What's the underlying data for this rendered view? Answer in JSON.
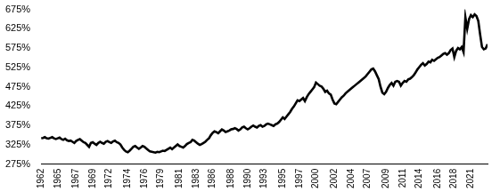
{
  "chart_data": {
    "type": "line",
    "color": "#000000",
    "grid": false,
    "categories": [
      "1962",
      null,
      null,
      null,
      null,
      null,
      null,
      null,
      null,
      "1965",
      null,
      null,
      null,
      null,
      null,
      null,
      null,
      null,
      null,
      "1967",
      null,
      null,
      null,
      null,
      null,
      null,
      null,
      null,
      "1969",
      null,
      null,
      null,
      null,
      null,
      null,
      null,
      null,
      "1972",
      null,
      null,
      null,
      null,
      null,
      null,
      null,
      null,
      null,
      "1974",
      null,
      null,
      null,
      null,
      null,
      null,
      null,
      null,
      "1976",
      null,
      null,
      null,
      null,
      null,
      null,
      null,
      null,
      "1979",
      null,
      null,
      null,
      null,
      null,
      null,
      null,
      null,
      null,
      "1981",
      null,
      null,
      null,
      null,
      null,
      null,
      null,
      null,
      "1983",
      null,
      null,
      null,
      null,
      null,
      null,
      null,
      null,
      "1986",
      null,
      null,
      null,
      null,
      null,
      null,
      null,
      null,
      null,
      "1988",
      null,
      null,
      null,
      null,
      null,
      null,
      null,
      null,
      "1990",
      null,
      null,
      null,
      null,
      null,
      null,
      null,
      null,
      "1993",
      null,
      null,
      null,
      null,
      null,
      null,
      null,
      null,
      null,
      "1995",
      null,
      null,
      null,
      null,
      null,
      null,
      null,
      null,
      "1997",
      null,
      null,
      null,
      null,
      null,
      null,
      null,
      null,
      "2000",
      null,
      null,
      null,
      null,
      null,
      null,
      null,
      null,
      null,
      "2002",
      null,
      null,
      null,
      null,
      null,
      null,
      null,
      null,
      "2004",
      null,
      null,
      null,
      null,
      null,
      null,
      null,
      null,
      "2007",
      null,
      null,
      null,
      null,
      null,
      null,
      null,
      null,
      null,
      "2009",
      null,
      null,
      null,
      null,
      null,
      null,
      null,
      null,
      "2011",
      null,
      null,
      null,
      null,
      null,
      null,
      null,
      null,
      "2014",
      null,
      null,
      null,
      null,
      null,
      null,
      null,
      null,
      null,
      "2016",
      null,
      null,
      null,
      null,
      null,
      null,
      null,
      null,
      "2018",
      null,
      null,
      null,
      null,
      null,
      null,
      null,
      null,
      "2021",
      null,
      null,
      null,
      null,
      null,
      null,
      null,
      null,
      null
    ],
    "values": [
      342,
      343,
      345,
      342,
      341,
      343,
      345,
      342,
      340,
      342,
      344,
      340,
      338,
      341,
      337,
      335,
      336,
      333,
      330,
      335,
      338,
      340,
      336,
      332,
      330,
      325,
      320,
      330,
      332,
      328,
      325,
      330,
      333,
      330,
      328,
      333,
      335,
      332,
      330,
      334,
      336,
      332,
      330,
      326,
      318,
      312,
      308,
      306,
      310,
      315,
      320,
      322,
      318,
      315,
      318,
      322,
      320,
      316,
      312,
      308,
      307,
      306,
      305,
      307,
      306,
      308,
      310,
      309,
      312,
      315,
      318,
      314,
      318,
      322,
      326,
      322,
      320,
      318,
      322,
      327,
      330,
      332,
      338,
      336,
      332,
      328,
      325,
      327,
      330,
      333,
      338,
      342,
      350,
      356,
      360,
      358,
      355,
      360,
      365,
      362,
      358,
      360,
      362,
      365,
      366,
      368,
      366,
      362,
      365,
      370,
      372,
      368,
      365,
      368,
      372,
      375,
      372,
      370,
      374,
      376,
      372,
      374,
      378,
      380,
      378,
      376,
      374,
      378,
      380,
      384,
      390,
      396,
      392,
      398,
      404,
      410,
      418,
      424,
      432,
      440,
      438,
      442,
      446,
      438,
      448,
      456,
      462,
      468,
      474,
      486,
      482,
      478,
      476,
      470,
      462,
      465,
      458,
      455,
      442,
      432,
      430,
      436,
      442,
      448,
      452,
      458,
      462,
      466,
      470,
      474,
      478,
      482,
      486,
      490,
      494,
      498,
      502,
      508,
      514,
      520,
      522,
      515,
      505,
      495,
      475,
      460,
      456,
      462,
      472,
      480,
      485,
      478,
      488,
      490,
      488,
      478,
      485,
      490,
      488,
      494,
      496,
      500,
      505,
      512,
      520,
      526,
      532,
      536,
      530,
      534,
      540,
      538,
      545,
      542,
      546,
      550,
      552,
      556,
      560,
      562,
      558,
      562,
      570,
      574,
      552,
      568,
      575,
      572,
      578,
      565,
      655,
      625,
      650,
      660,
      655,
      662,
      658,
      645,
      610,
      578,
      572,
      574,
      585
    ],
    "ylim": [
      275,
      675
    ],
    "yticks": [
      {
        "value": 275,
        "label": "275%"
      },
      {
        "value": 325,
        "label": "325%"
      },
      {
        "value": 375,
        "label": "375%"
      },
      {
        "value": 425,
        "label": "425%"
      },
      {
        "value": 475,
        "label": "475%"
      },
      {
        "value": 525,
        "label": "525%"
      },
      {
        "value": 575,
        "label": "575%"
      },
      {
        "value": 625,
        "label": "625%"
      },
      {
        "value": 675,
        "label": "675%"
      }
    ]
  }
}
